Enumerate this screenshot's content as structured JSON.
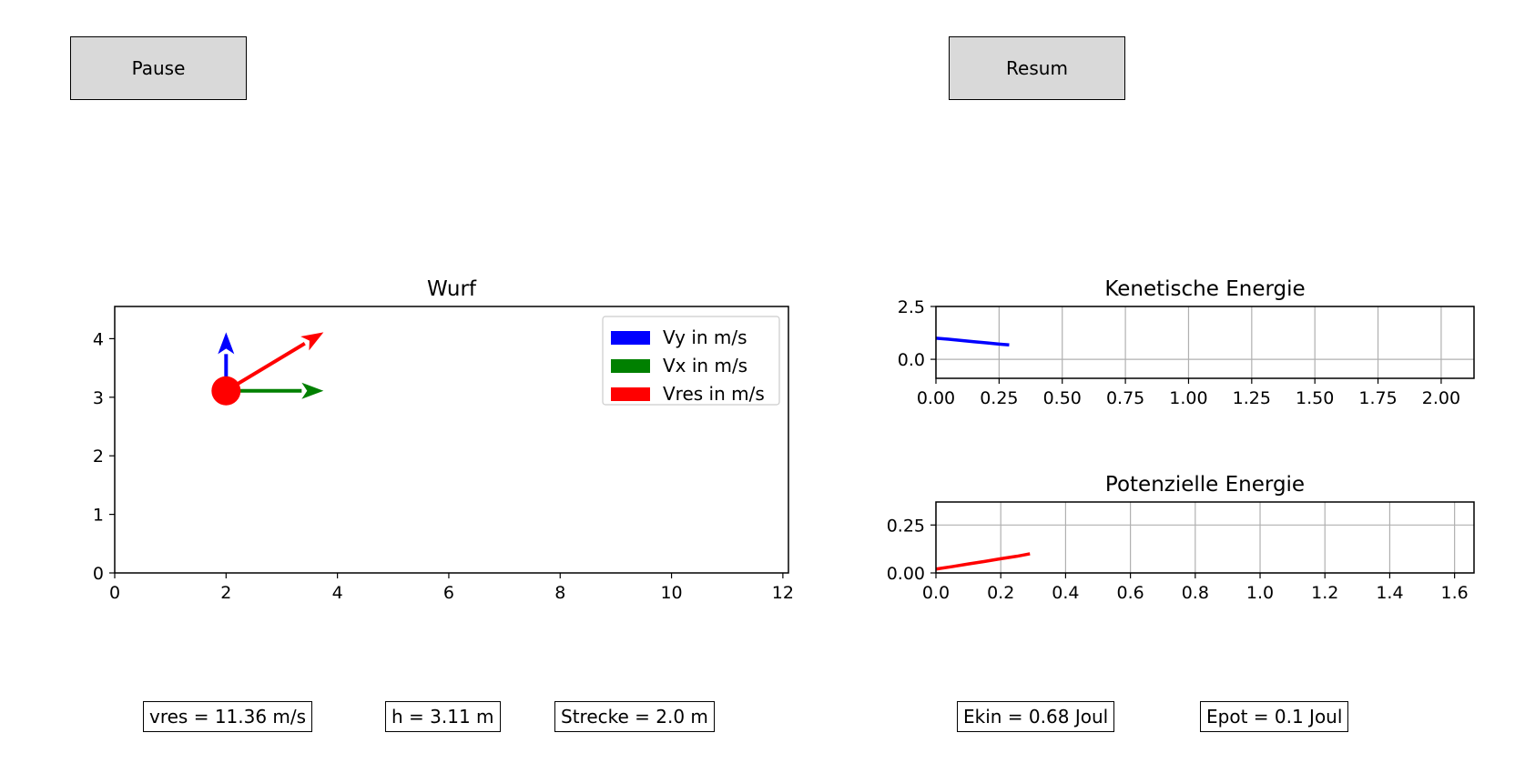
{
  "buttons": {
    "pause": "Pause",
    "resume": "Resum"
  },
  "info": {
    "vres": "vres = 11.36 m/s",
    "height": "h = 3.11 m",
    "distance": "Strecke = 2.0 m",
    "ekin": "Ekin = 0.68 Joul",
    "epot": "Epot = 0.1 Joul"
  },
  "colors": {
    "vy": "#0000ff",
    "vx": "#008000",
    "vres": "#ff0000",
    "grid": "#b0b0b0"
  },
  "chart_data": [
    {
      "type": "scatter",
      "title": "Wurf",
      "xlim": [
        0,
        12.1
      ],
      "ylim": [
        0,
        4.55
      ],
      "xticks": [
        0,
        2,
        4,
        6,
        8,
        10,
        12
      ],
      "yticks": [
        0,
        1,
        2,
        3,
        4
      ],
      "grid": false,
      "legend_position": "top-right",
      "legend": [
        {
          "label": "Vy in m/s",
          "color": "#0000ff"
        },
        {
          "label": "Vx in m/s",
          "color": "#008000"
        },
        {
          "label": "Vres in m/s",
          "color": "#ff0000"
        }
      ],
      "point": {
        "x": 2.0,
        "y": 3.11,
        "color": "#ff0000"
      },
      "vectors": [
        {
          "name": "Vy",
          "dx": 0.0,
          "dy": 1.0,
          "color": "#0000ff"
        },
        {
          "name": "Vx",
          "dx": 1.75,
          "dy": 0.0,
          "color": "#008000"
        },
        {
          "name": "Vres",
          "dx": 1.75,
          "dy": 1.0,
          "color": "#ff0000"
        }
      ]
    },
    {
      "type": "line",
      "title": "Kenetische Energie",
      "xlim": [
        0,
        2.13
      ],
      "ylim": [
        -0.9,
        2.5
      ],
      "xticks": [
        0.0,
        0.25,
        0.5,
        0.75,
        1.0,
        1.25,
        1.5,
        1.75,
        2.0
      ],
      "xtick_labels": [
        "0.00",
        "0.25",
        "0.50",
        "0.75",
        "1.00",
        "1.25",
        "1.50",
        "1.75",
        "2.00"
      ],
      "yticks": [
        0.0,
        2.5
      ],
      "ytick_labels": [
        "0.0",
        "2.5"
      ],
      "grid": true,
      "series": [
        {
          "color": "#0000ff",
          "x": [
            0.0,
            0.05,
            0.1,
            0.15,
            0.2,
            0.25,
            0.29
          ],
          "y": [
            1.0,
            0.95,
            0.89,
            0.83,
            0.78,
            0.72,
            0.68
          ]
        }
      ]
    },
    {
      "type": "line",
      "title": "Potenzielle Energie",
      "xlim": [
        0,
        1.66
      ],
      "ylim": [
        0,
        0.37
      ],
      "xticks": [
        0.0,
        0.2,
        0.4,
        0.6,
        0.8,
        1.0,
        1.2,
        1.4,
        1.6
      ],
      "xtick_labels": [
        "0.0",
        "0.2",
        "0.4",
        "0.6",
        "0.8",
        "1.0",
        "1.2",
        "1.4",
        "1.6"
      ],
      "yticks": [
        0.0,
        0.25
      ],
      "ytick_labels": [
        "0.00",
        "0.25"
      ],
      "grid": true,
      "series": [
        {
          "color": "#ff0000",
          "x": [
            0.0,
            0.05,
            0.1,
            0.15,
            0.2,
            0.25,
            0.29
          ],
          "y": [
            0.02,
            0.033,
            0.047,
            0.06,
            0.074,
            0.087,
            0.1
          ]
        }
      ]
    }
  ]
}
